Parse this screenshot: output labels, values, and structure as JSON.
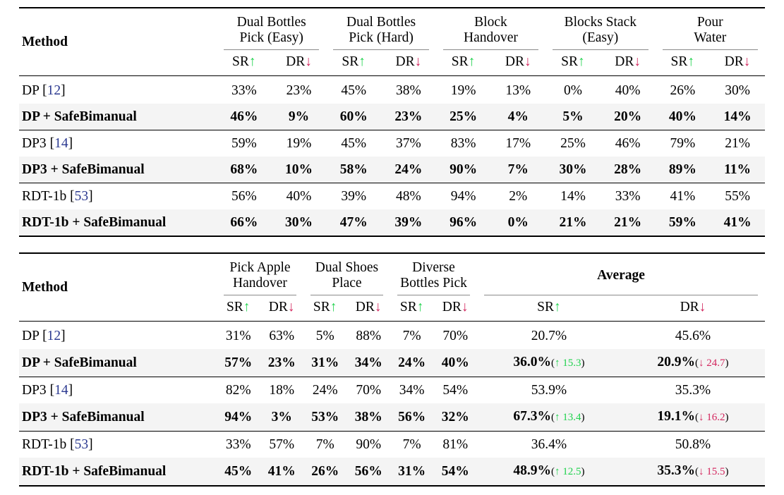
{
  "colors": {
    "sr_green": "#1fd24d",
    "dr_crimson": "#d3265e",
    "citation_blue": "#2b3990",
    "row_shade": "#f4f4f4"
  },
  "metrics": {
    "sr_label": "SR",
    "dr_label": "DR",
    "up_arrow": "↑",
    "down_arrow": "↓"
  },
  "tables": [
    {
      "method_header": "Method",
      "groups": [
        {
          "lines": [
            "Dual Bottles",
            "Pick (Easy)"
          ],
          "bold": false,
          "wide": false
        },
        {
          "lines": [
            "Dual Bottles",
            "Pick (Hard)"
          ],
          "bold": false,
          "wide": false
        },
        {
          "lines": [
            "Block",
            "Handover"
          ],
          "bold": false,
          "wide": false
        },
        {
          "lines": [
            "Blocks Stack",
            "(Easy)"
          ],
          "bold": false,
          "wide": false
        },
        {
          "lines": [
            "Pour",
            "Water"
          ],
          "bold": false,
          "wide": false
        }
      ],
      "rows": [
        {
          "method": "DP",
          "cite": "12",
          "bold": false,
          "shaded": false,
          "sep": false,
          "values": [
            "33%",
            "23%",
            "45%",
            "38%",
            "19%",
            "13%",
            "0%",
            "40%",
            "26%",
            "30%"
          ]
        },
        {
          "method": "DP + SafeBimanual",
          "cite": null,
          "bold": true,
          "shaded": true,
          "sep": false,
          "values": [
            "46%",
            "9%",
            "60%",
            "23%",
            "25%",
            "4%",
            "5%",
            "20%",
            "40%",
            "14%"
          ]
        },
        {
          "method": "DP3",
          "cite": "14",
          "bold": false,
          "shaded": false,
          "sep": true,
          "values": [
            "59%",
            "19%",
            "45%",
            "37%",
            "83%",
            "17%",
            "25%",
            "46%",
            "79%",
            "21%"
          ]
        },
        {
          "method": "DP3 + SafeBimanual",
          "cite": null,
          "bold": true,
          "shaded": true,
          "sep": false,
          "values": [
            "68%",
            "10%",
            "58%",
            "24%",
            "90%",
            "7%",
            "30%",
            "28%",
            "89%",
            "11%"
          ]
        },
        {
          "method": "RDT-1b",
          "cite": "53",
          "bold": false,
          "shaded": false,
          "sep": true,
          "values": [
            "56%",
            "40%",
            "39%",
            "48%",
            "94%",
            "2%",
            "14%",
            "33%",
            "41%",
            "55%"
          ]
        },
        {
          "method": "RDT-1b + SafeBimanual",
          "cite": null,
          "bold": true,
          "shaded": true,
          "sep": false,
          "values": [
            "66%",
            "30%",
            "47%",
            "39%",
            "96%",
            "0%",
            "21%",
            "21%",
            "59%",
            "41%"
          ]
        }
      ]
    },
    {
      "method_header": "Method",
      "groups": [
        {
          "lines": [
            "Pick Apple",
            "Handover"
          ],
          "bold": false,
          "wide": false
        },
        {
          "lines": [
            "Dual Shoes",
            "Place"
          ],
          "bold": false,
          "wide": false
        },
        {
          "lines": [
            "Diverse",
            "Bottles Pick"
          ],
          "bold": false,
          "wide": false
        },
        {
          "lines": [
            "Average"
          ],
          "bold": true,
          "wide": true
        }
      ],
      "rows": [
        {
          "method": "DP",
          "cite": "12",
          "bold": false,
          "shaded": false,
          "sep": false,
          "values": [
            "31%",
            "63%",
            "5%",
            "88%",
            "7%",
            "70%"
          ],
          "avg": [
            {
              "v": "20.7%",
              "d": null,
              "dir": null
            },
            {
              "v": "45.6%",
              "d": null,
              "dir": null
            }
          ]
        },
        {
          "method": "DP + SafeBimanual",
          "cite": null,
          "bold": true,
          "shaded": true,
          "sep": false,
          "values": [
            "57%",
            "23%",
            "31%",
            "34%",
            "24%",
            "40%"
          ],
          "avg": [
            {
              "v": "36.0%",
              "d": "15.3",
              "dir": "up"
            },
            {
              "v": "20.9%",
              "d": "24.7",
              "dir": "down"
            }
          ]
        },
        {
          "method": "DP3",
          "cite": "14",
          "bold": false,
          "shaded": false,
          "sep": true,
          "values": [
            "82%",
            "18%",
            "24%",
            "70%",
            "34%",
            "54%"
          ],
          "avg": [
            {
              "v": "53.9%",
              "d": null,
              "dir": null
            },
            {
              "v": "35.3%",
              "d": null,
              "dir": null
            }
          ]
        },
        {
          "method": "DP3 + SafeBimanual",
          "cite": null,
          "bold": true,
          "shaded": true,
          "sep": false,
          "values": [
            "94%",
            "3%",
            "53%",
            "38%",
            "56%",
            "32%"
          ],
          "avg": [
            {
              "v": "67.3%",
              "d": "13.4",
              "dir": "up"
            },
            {
              "v": "19.1%",
              "d": "16.2",
              "dir": "down"
            }
          ]
        },
        {
          "method": "RDT-1b",
          "cite": "53",
          "bold": false,
          "shaded": false,
          "sep": true,
          "values": [
            "33%",
            "57%",
            "7%",
            "90%",
            "7%",
            "81%"
          ],
          "avg": [
            {
              "v": "36.4%",
              "d": null,
              "dir": null
            },
            {
              "v": "50.8%",
              "d": null,
              "dir": null
            }
          ]
        },
        {
          "method": "RDT-1b + SafeBimanual",
          "cite": null,
          "bold": true,
          "shaded": true,
          "sep": false,
          "values": [
            "45%",
            "41%",
            "26%",
            "56%",
            "31%",
            "54%"
          ],
          "avg": [
            {
              "v": "48.9%",
              "d": "12.5",
              "dir": "up"
            },
            {
              "v": "35.3%",
              "d": "15.5",
              "dir": "down"
            }
          ]
        }
      ]
    }
  ]
}
